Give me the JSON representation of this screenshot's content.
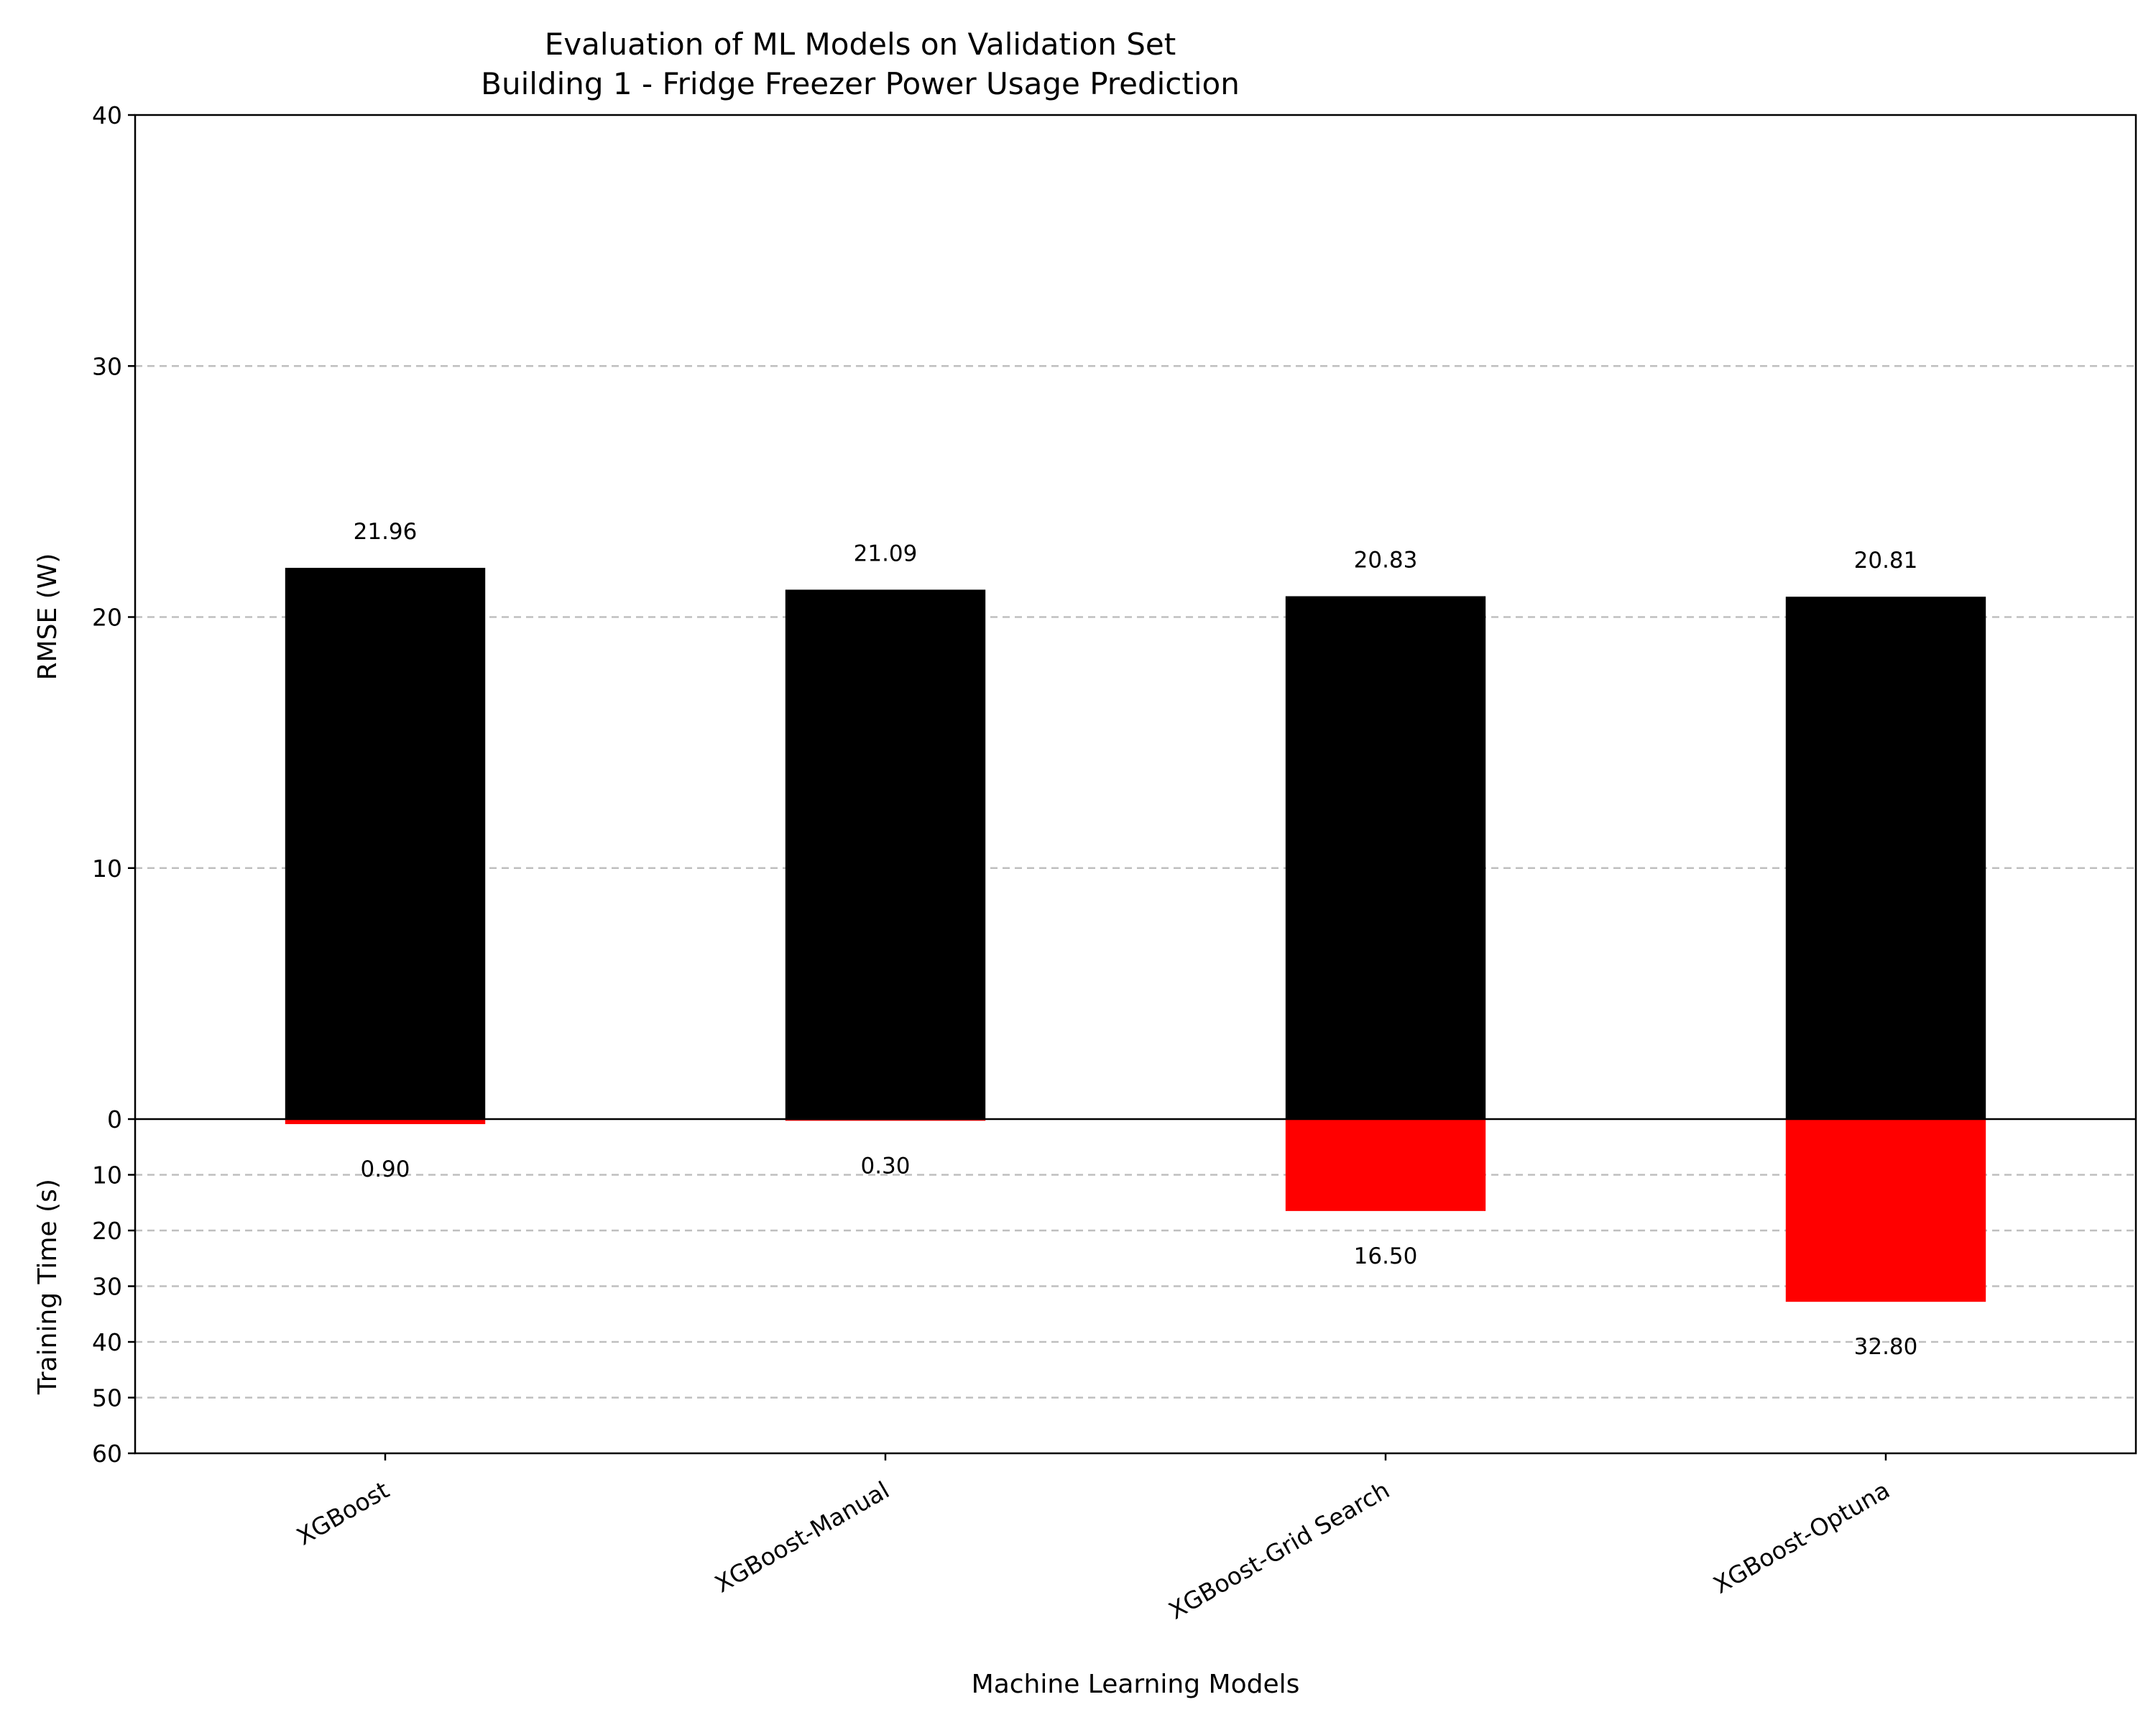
{
  "chart_data": {
    "type": "bar",
    "title": "Evaluation of ML Models on Validation Set",
    "subtitle": "Building 1 - Fridge Freezer Power Usage Prediction",
    "xlabel": "Machine Learning Models",
    "categories": [
      "XGBoost",
      "XGBoost-Manual",
      "XGBoost-Grid Search",
      "XGBoost-Optuna"
    ],
    "top": {
      "ylabel": "RMSE (W)",
      "ylim": [
        0,
        40
      ],
      "yticks": [
        "0",
        "10",
        "20",
        "30",
        "40"
      ],
      "values": [
        21.96,
        21.09,
        20.83,
        20.81
      ],
      "value_labels": [
        "21.96",
        "21.09",
        "20.83",
        "20.81"
      ],
      "color": "#000000"
    },
    "bottom": {
      "ylabel": "Training Time (s)",
      "ylim": [
        0,
        60
      ],
      "inverted": true,
      "yticks": [
        "10",
        "20",
        "30",
        "40",
        "50",
        "60"
      ],
      "values": [
        0.9,
        0.3,
        16.5,
        32.8
      ],
      "value_labels": [
        "0.90",
        "0.30",
        "16.50",
        "32.80"
      ],
      "color": "#ff0000"
    },
    "grid": true,
    "grid_style": "dashed",
    "legend": "none"
  }
}
